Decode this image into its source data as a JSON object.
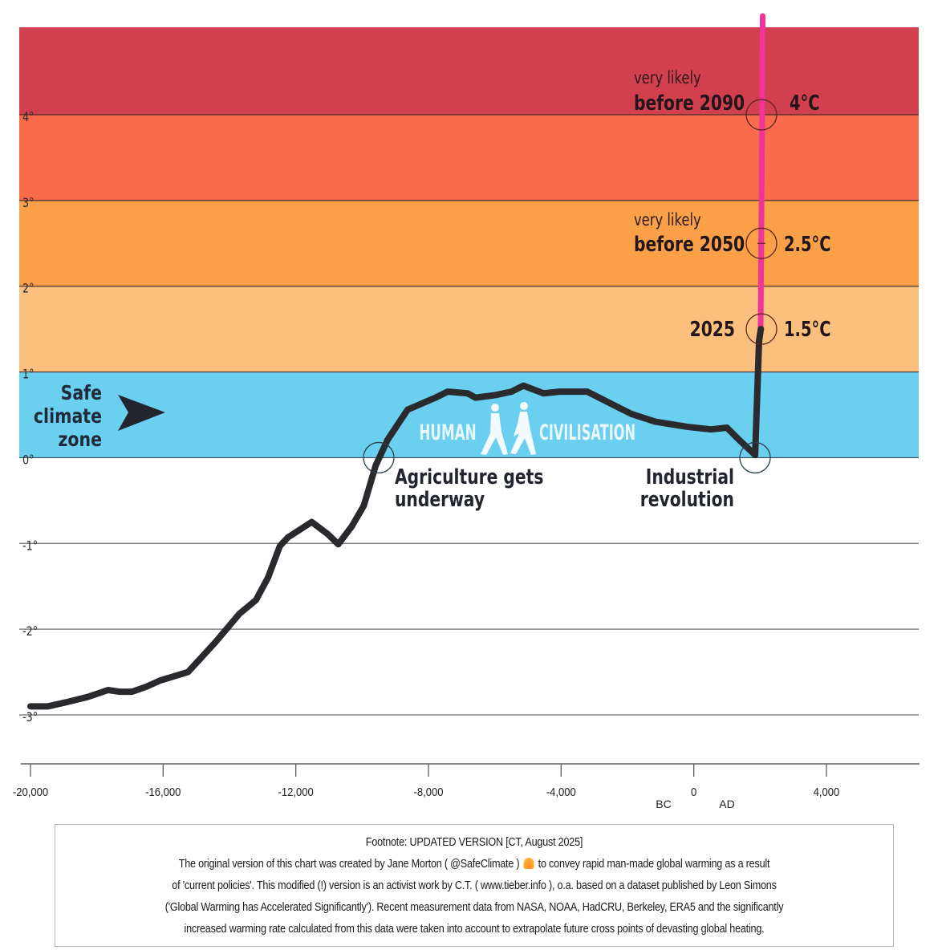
{
  "chart_data": {
    "type": "line",
    "title": "",
    "xlabel": "",
    "ylabel": "",
    "xlim": [
      -20400,
      6800
    ],
    "ylim": [
      -3.3,
      5.0
    ],
    "x_ticks": [
      {
        "value": -20000,
        "label": "-20,000"
      },
      {
        "value": -16000,
        "label": "-16,000"
      },
      {
        "value": -12000,
        "label": "-12,000"
      },
      {
        "value": -8000,
        "label": "-8,000"
      },
      {
        "value": -4000,
        "label": "-4,000"
      },
      {
        "value": 0,
        "label": "0"
      },
      {
        "value": 4000,
        "label": "4,000"
      }
    ],
    "x_era_labels": {
      "before": "BC",
      "after": "AD"
    },
    "y_ticks": [
      {
        "value": 4,
        "label": "4°"
      },
      {
        "value": 3,
        "label": "3°"
      },
      {
        "value": 2,
        "label": "2°"
      },
      {
        "value": 1,
        "label": "1°"
      },
      {
        "value": 0,
        "label": "0°"
      },
      {
        "value": -1,
        "label": "-1°"
      },
      {
        "value": -2,
        "label": "-2°"
      },
      {
        "value": -3,
        "label": "-3°"
      }
    ],
    "bands": [
      {
        "name": "band-above-4",
        "from": 4,
        "to": 5.0,
        "color": "#D23F4E"
      },
      {
        "name": "band-3-to-4",
        "from": 3,
        "to": 4,
        "color": "#FA6B4C"
      },
      {
        "name": "band-2-to-3",
        "from": 2,
        "to": 3,
        "color": "#F9A048"
      },
      {
        "name": "band-1-to-2",
        "from": 1,
        "to": 2,
        "color": "#FCC07E"
      },
      {
        "name": "band-safe-zone",
        "from": 0,
        "to": 1,
        "color": "#6BCFEF"
      }
    ],
    "series": [
      {
        "name": "observed-temperature",
        "color": "#2a2a2e",
        "points": [
          [
            -20000,
            -2.9
          ],
          [
            -19470,
            -2.9
          ],
          [
            -18900,
            -2.85
          ],
          [
            -18270,
            -2.79
          ],
          [
            -17660,
            -2.71
          ],
          [
            -17300,
            -2.73
          ],
          [
            -16940,
            -2.73
          ],
          [
            -16500,
            -2.67
          ],
          [
            -16100,
            -2.6
          ],
          [
            -15250,
            -2.5
          ],
          [
            -14420,
            -2.15
          ],
          [
            -13700,
            -1.82
          ],
          [
            -13200,
            -1.66
          ],
          [
            -12840,
            -1.4
          ],
          [
            -12480,
            -1.03
          ],
          [
            -12240,
            -0.93
          ],
          [
            -11880,
            -0.84
          ],
          [
            -11520,
            -0.75
          ],
          [
            -11040,
            -0.89
          ],
          [
            -10720,
            -1.01
          ],
          [
            -10310,
            -0.8
          ],
          [
            -9950,
            -0.56
          ],
          [
            -9590,
            -0.09
          ],
          [
            -9230,
            0.21
          ],
          [
            -8630,
            0.56
          ],
          [
            -7790,
            0.7
          ],
          [
            -7420,
            0.77
          ],
          [
            -6820,
            0.75
          ],
          [
            -6580,
            0.7
          ],
          [
            -5980,
            0.73
          ],
          [
            -5500,
            0.77
          ],
          [
            -5140,
            0.84
          ],
          [
            -4530,
            0.75
          ],
          [
            -4050,
            0.77
          ],
          [
            -3210,
            0.77
          ],
          [
            -2600,
            0.65
          ],
          [
            -1880,
            0.51
          ],
          [
            -1160,
            0.42
          ],
          [
            -200,
            0.36
          ],
          [
            520,
            0.33
          ],
          [
            1000,
            0.35
          ],
          [
            1360,
            0.21
          ],
          [
            1800,
            0.05
          ],
          [
            1850,
            0.03
          ],
          [
            1950,
            1.36
          ],
          [
            2025,
            1.5
          ]
        ]
      },
      {
        "name": "projected-temperature",
        "color": "#F0349A",
        "points": [
          [
            2025,
            1.5
          ],
          [
            2050,
            2.5
          ],
          [
            2090,
            4.0
          ],
          [
            2110,
            5.0
          ]
        ]
      }
    ],
    "markers": [
      {
        "name": "agriculture-marker",
        "x": -9500,
        "y": 0
      },
      {
        "name": "industrial-marker",
        "x": 1850,
        "y": 0
      },
      {
        "name": "marker-2025",
        "x": 2025,
        "y": 1.5
      },
      {
        "name": "marker-2050",
        "x": 2050,
        "y": 2.5
      },
      {
        "name": "marker-2090",
        "x": 2090,
        "y": 4.0
      }
    ],
    "annotations": {
      "safe_zone": [
        "Safe",
        "climate",
        "zone"
      ],
      "human": "HUMAN",
      "civilisation": "CIVILISATION",
      "agriculture": [
        "Agriculture gets",
        "underway"
      ],
      "industrial": [
        "Industrial",
        "revolution"
      ],
      "milestone_2025": {
        "label": "2025",
        "value": "1.5°C"
      },
      "milestone_2050": {
        "small": "very likely",
        "label": "before 2050",
        "value": "2.5°C"
      },
      "milestone_2090": {
        "small": "very likely",
        "label": "before 2090",
        "value": "4°C"
      }
    },
    "grid": true,
    "legend": "none"
  },
  "footnote": {
    "title": "Footnote: UPDATED VERSION [CT, August 2025]",
    "line1a": "The original version of this chart was created by Jane Morton ( @SafeClimate )",
    "line1_icon": "volcano-emoji",
    "line1b": "to convey rapid man-made global warming as a result",
    "line2": "of 'current policies'. This modified (!) version is an activist work by C.T. ( www.tieber.info ), o.a. based on a dataset published by Leon Simons",
    "line3": "('Global Warming has Accelerated Significantly'). Recent measurement data from NASA, NOAA, HadCRU, Berkeley, ERA5 and the significantly",
    "line4": "increased warming rate calculated from this data were taken into account to extrapolate future cross points of devasting global heating."
  }
}
